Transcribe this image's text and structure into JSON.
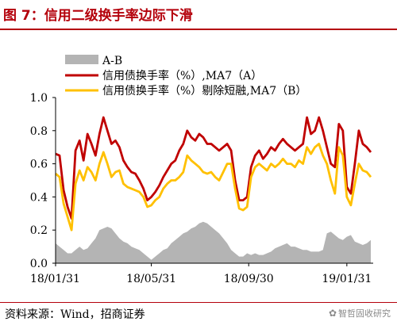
{
  "figure": {
    "title": "图 7：信用二级换手率边际下滑",
    "source": "资料来源：Wind，招商证券",
    "watermark": "智哲固收研究"
  },
  "chart_data": {
    "type": "line",
    "title": "",
    "xlabel": "",
    "ylabel": "",
    "ylim": [
      0,
      1.0
    ],
    "yticks": [
      0.0,
      0.2,
      0.4,
      0.6,
      0.8,
      1.0
    ],
    "ytick_labels": [
      "0.0",
      "0.2",
      "0.4",
      "0.6",
      "0.8",
      "1.0"
    ],
    "xticks": [
      "2018-01-31",
      "2018-05-31",
      "2018-09-30",
      "2019-01-31"
    ],
    "xtick_labels": [
      "18/01/31",
      "18/05/31",
      "18/09/30",
      "19/01/31"
    ],
    "xrange": [
      "2018-01-31",
      "2019-03-05"
    ],
    "grid": false,
    "legend_position": "top-left",
    "x": [
      "2018-01-31",
      "2018-02-05",
      "2018-02-10",
      "2018-02-15",
      "2018-02-20",
      "2018-02-25",
      "2018-03-02",
      "2018-03-07",
      "2018-03-12",
      "2018-03-17",
      "2018-03-22",
      "2018-03-27",
      "2018-04-01",
      "2018-04-06",
      "2018-04-11",
      "2018-04-16",
      "2018-04-21",
      "2018-04-26",
      "2018-05-01",
      "2018-05-06",
      "2018-05-11",
      "2018-05-16",
      "2018-05-21",
      "2018-05-26",
      "2018-05-31",
      "2018-06-05",
      "2018-06-10",
      "2018-06-15",
      "2018-06-20",
      "2018-06-25",
      "2018-06-30",
      "2018-07-05",
      "2018-07-10",
      "2018-07-15",
      "2018-07-20",
      "2018-07-25",
      "2018-07-30",
      "2018-08-04",
      "2018-08-09",
      "2018-08-14",
      "2018-08-19",
      "2018-08-24",
      "2018-08-29",
      "2018-09-03",
      "2018-09-08",
      "2018-09-13",
      "2018-09-18",
      "2018-09-23",
      "2018-09-28",
      "2018-10-03",
      "2018-10-08",
      "2018-10-13",
      "2018-10-18",
      "2018-10-23",
      "2018-10-28",
      "2018-11-02",
      "2018-11-07",
      "2018-11-12",
      "2018-11-17",
      "2018-11-22",
      "2018-11-27",
      "2018-12-02",
      "2018-12-07",
      "2018-12-12",
      "2018-12-17",
      "2018-12-22",
      "2018-12-27",
      "2019-01-01",
      "2019-01-06",
      "2019-01-11",
      "2019-01-16",
      "2019-01-21",
      "2019-01-26",
      "2019-01-31",
      "2019-02-05",
      "2019-02-10",
      "2019-02-15",
      "2019-02-20",
      "2019-02-25",
      "2019-03-02"
    ],
    "series": [
      {
        "name": "A-B",
        "style": "area",
        "color": "#b4b4b4",
        "values": [
          0.12,
          0.1,
          0.08,
          0.06,
          0.06,
          0.08,
          0.1,
          0.08,
          0.09,
          0.12,
          0.15,
          0.2,
          0.21,
          0.22,
          0.21,
          0.18,
          0.15,
          0.13,
          0.12,
          0.1,
          0.09,
          0.08,
          0.06,
          0.04,
          0.02,
          0.04,
          0.06,
          0.08,
          0.09,
          0.12,
          0.14,
          0.16,
          0.18,
          0.19,
          0.21,
          0.22,
          0.24,
          0.25,
          0.24,
          0.22,
          0.2,
          0.18,
          0.15,
          0.12,
          0.08,
          0.06,
          0.04,
          0.04,
          0.06,
          0.05,
          0.06,
          0.05,
          0.05,
          0.06,
          0.07,
          0.09,
          0.1,
          0.11,
          0.12,
          0.1,
          0.1,
          0.09,
          0.08,
          0.08,
          0.07,
          0.07,
          0.07,
          0.08,
          0.18,
          0.19,
          0.17,
          0.15,
          0.14,
          0.16,
          0.17,
          0.13,
          0.12,
          0.11,
          0.12,
          0.14
        ]
      },
      {
        "name": "信用债换手率（%）,MA7（A）",
        "style": "line",
        "color": "#c00000",
        "values": [
          0.66,
          0.65,
          0.44,
          0.34,
          0.27,
          0.68,
          0.74,
          0.62,
          0.78,
          0.72,
          0.65,
          0.78,
          0.88,
          0.8,
          0.72,
          0.74,
          0.7,
          0.62,
          0.58,
          0.55,
          0.54,
          0.5,
          0.45,
          0.38,
          0.4,
          0.43,
          0.47,
          0.52,
          0.56,
          0.6,
          0.62,
          0.68,
          0.72,
          0.8,
          0.76,
          0.74,
          0.78,
          0.76,
          0.72,
          0.72,
          0.7,
          0.68,
          0.7,
          0.72,
          0.68,
          0.5,
          0.38,
          0.38,
          0.4,
          0.58,
          0.65,
          0.68,
          0.63,
          0.66,
          0.7,
          0.68,
          0.72,
          0.75,
          0.72,
          0.7,
          0.68,
          0.7,
          0.72,
          0.88,
          0.78,
          0.8,
          0.88,
          0.8,
          0.7,
          0.6,
          0.58,
          0.84,
          0.8,
          0.46,
          0.42,
          0.6,
          0.8,
          0.72,
          0.7,
          0.67
        ]
      },
      {
        "name": "信用债换手率（%）剔除短融,MA7（B）",
        "style": "line",
        "color": "#ffc000",
        "values": [
          0.54,
          0.52,
          0.36,
          0.28,
          0.2,
          0.48,
          0.56,
          0.5,
          0.58,
          0.55,
          0.5,
          0.6,
          0.67,
          0.6,
          0.52,
          0.55,
          0.56,
          0.48,
          0.46,
          0.45,
          0.44,
          0.43,
          0.4,
          0.34,
          0.35,
          0.38,
          0.4,
          0.45,
          0.48,
          0.5,
          0.5,
          0.52,
          0.55,
          0.65,
          0.62,
          0.6,
          0.58,
          0.55,
          0.54,
          0.55,
          0.52,
          0.5,
          0.55,
          0.6,
          0.6,
          0.45,
          0.33,
          0.32,
          0.34,
          0.52,
          0.58,
          0.6,
          0.58,
          0.56,
          0.6,
          0.58,
          0.6,
          0.63,
          0.6,
          0.6,
          0.58,
          0.62,
          0.6,
          0.7,
          0.66,
          0.7,
          0.72,
          0.65,
          0.6,
          0.5,
          0.42,
          0.7,
          0.65,
          0.4,
          0.35,
          0.48,
          0.6,
          0.56,
          0.55,
          0.52
        ]
      }
    ]
  }
}
